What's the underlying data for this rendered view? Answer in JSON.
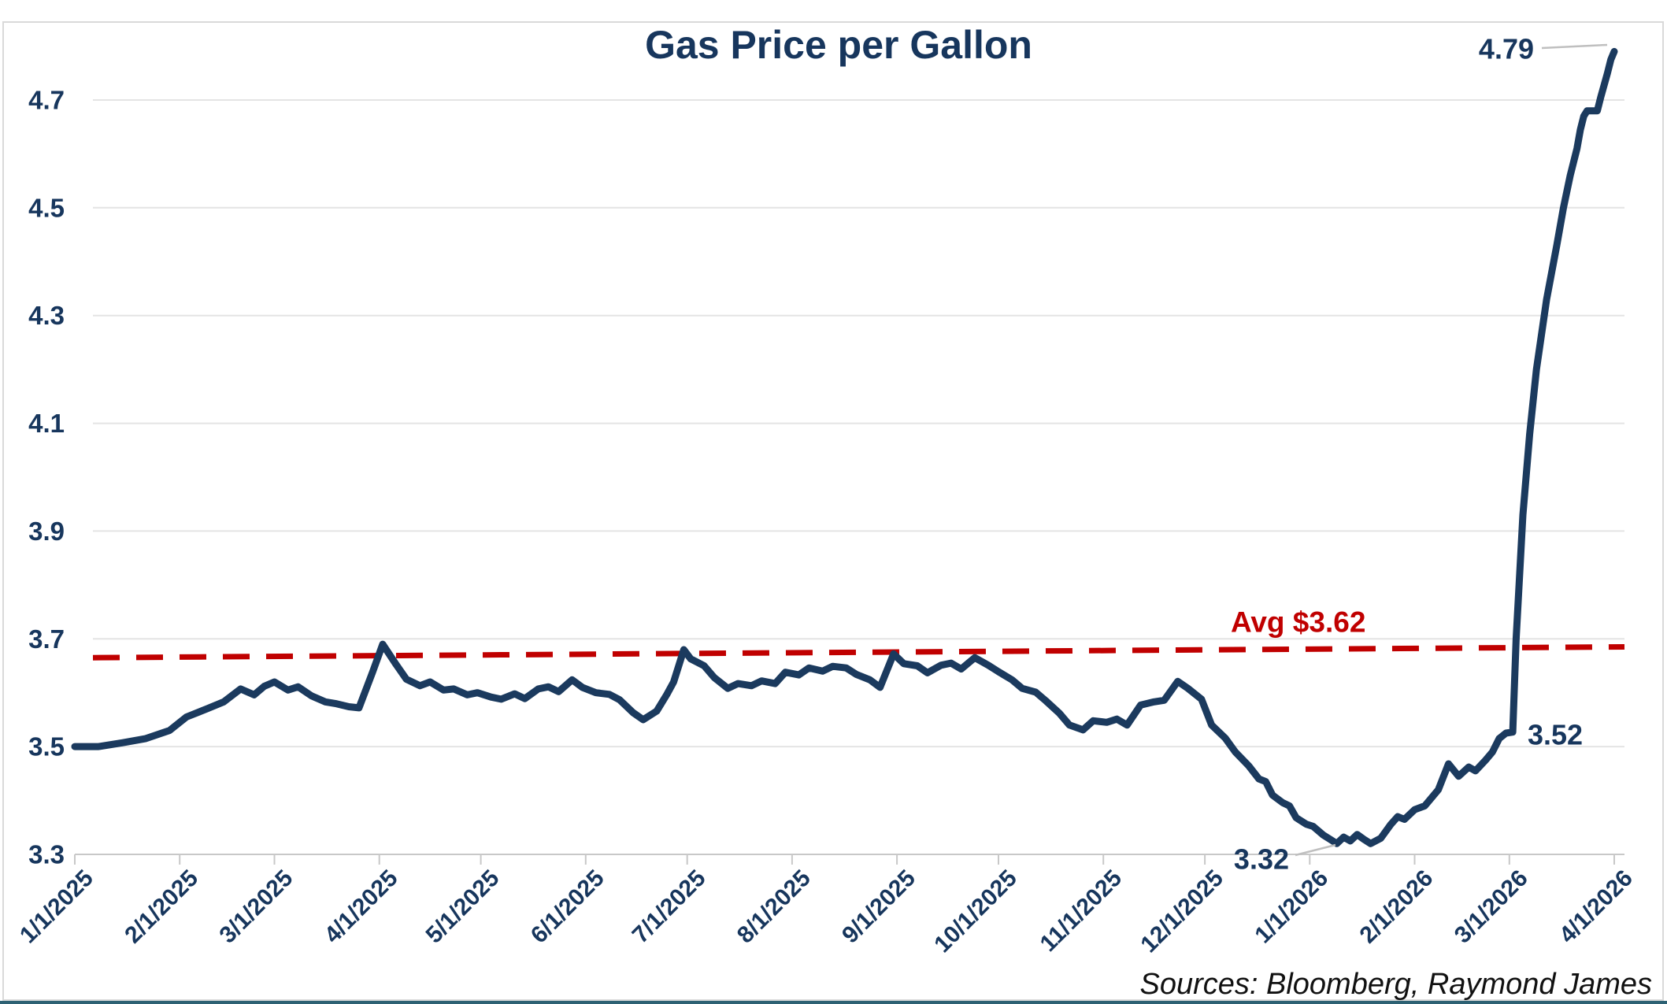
{
  "title": "Gas Price per Gallon",
  "source_note": "Sources: Bloomberg, Raymond James",
  "colors": {
    "line": "#1b3a5e",
    "text": "#17365d",
    "average_line": "#c00000",
    "gridline": "#e4e4e4",
    "axis_line": "#c8c8c8",
    "leader_line": "#bfbfbf",
    "border": "#d9d9d9",
    "bottom_edge": "#2d6173",
    "background": "#ffffff"
  },
  "chart_data": {
    "type": "line",
    "title": "Gas Price per Gallon",
    "xlabel": "",
    "ylabel": "",
    "grid": "horizontal-only",
    "legend": "none",
    "x_domain": [
      "1/1/2025",
      "4/1/2026"
    ],
    "ylim": [
      3.3,
      4.83
    ],
    "y_ticks": [
      3.3,
      3.5,
      3.7,
      3.9,
      4.1,
      4.3,
      4.5,
      4.7
    ],
    "y_tick_labels": [
      "3.3",
      "3.5",
      "3.7",
      "3.9",
      "4.1",
      "4.3",
      "4.5",
      "4.7"
    ],
    "x_tick_labels": [
      "1/1/2025",
      "2/1/2025",
      "3/1/2025",
      "4/1/2025",
      "5/1/2025",
      "6/1/2025",
      "7/1/2025",
      "8/1/2025",
      "9/1/2025",
      "10/1/2025",
      "11/1/2025",
      "12/1/2025",
      "1/1/2026",
      "2/1/2026",
      "3/1/2026",
      "4/1/2026"
    ],
    "average_line": {
      "label": "Avg $3.62",
      "average_value": 3.62,
      "line_start_value": 3.665,
      "line_end_value": 3.685,
      "style": "dashed",
      "color": "#c00000"
    },
    "annotations": [
      {
        "text": "4.79",
        "date": "4/1/2026",
        "value": 4.79,
        "role": "final-high"
      },
      {
        "text": "3.52",
        "date": "3/1/2026",
        "value": 3.52,
        "role": "pre-spike"
      },
      {
        "text": "3.32",
        "date": "1/9/2026",
        "value": 3.32,
        "role": "minimum"
      }
    ],
    "series": [
      {
        "name": "Gas price per gallon",
        "points": [
          [
            "1/1/2025",
            3.5
          ],
          [
            "1/8/2025",
            3.5
          ],
          [
            "1/15/2025",
            3.507
          ],
          [
            "1/22/2025",
            3.515
          ],
          [
            "1/29/2025",
            3.53
          ],
          [
            "2/3/2025",
            3.555
          ],
          [
            "2/9/2025",
            3.57
          ],
          [
            "2/14/2025",
            3.583
          ],
          [
            "2/19/2025",
            3.607
          ],
          [
            "2/23/2025",
            3.596
          ],
          [
            "2/26/2025",
            3.612
          ],
          [
            "3/1/2025",
            3.62
          ],
          [
            "3/5/2025",
            3.605
          ],
          [
            "3/8/2025",
            3.611
          ],
          [
            "3/12/2025",
            3.594
          ],
          [
            "3/16/2025",
            3.583
          ],
          [
            "3/19/2025",
            3.58
          ],
          [
            "3/23/2025",
            3.574
          ],
          [
            "3/26/2025",
            3.572
          ],
          [
            "3/30/2025",
            3.638
          ],
          [
            "4/2/2025",
            3.69
          ],
          [
            "4/6/2025",
            3.652
          ],
          [
            "4/9/2025",
            3.625
          ],
          [
            "4/13/2025",
            3.613
          ],
          [
            "4/16/2025",
            3.62
          ],
          [
            "4/20/2025",
            3.605
          ],
          [
            "4/23/2025",
            3.607
          ],
          [
            "4/27/2025",
            3.596
          ],
          [
            "4/30/2025",
            3.6
          ],
          [
            "5/4/2025",
            3.592
          ],
          [
            "5/7/2025",
            3.588
          ],
          [
            "5/11/2025",
            3.598
          ],
          [
            "5/14/2025",
            3.589
          ],
          [
            "5/18/2025",
            3.607
          ],
          [
            "5/21/2025",
            3.611
          ],
          [
            "5/24/2025",
            3.602
          ],
          [
            "5/28/2025",
            3.624
          ],
          [
            "5/31/2025",
            3.61
          ],
          [
            "6/4/2025",
            3.6
          ],
          [
            "6/8/2025",
            3.597
          ],
          [
            "6/11/2025",
            3.587
          ],
          [
            "6/15/2025",
            3.563
          ],
          [
            "6/18/2025",
            3.55
          ],
          [
            "6/22/2025",
            3.566
          ],
          [
            "6/25/2025",
            3.597
          ],
          [
            "6/27/2025",
            3.62
          ],
          [
            "6/30/2025",
            3.68
          ],
          [
            "7/2/2025",
            3.663
          ],
          [
            "7/6/2025",
            3.65
          ],
          [
            "7/9/2025",
            3.628
          ],
          [
            "7/13/2025",
            3.608
          ],
          [
            "7/16/2025",
            3.617
          ],
          [
            "7/20/2025",
            3.613
          ],
          [
            "7/23/2025",
            3.622
          ],
          [
            "7/27/2025",
            3.617
          ],
          [
            "7/30/2025",
            3.638
          ],
          [
            "8/3/2025",
            3.633
          ],
          [
            "8/6/2025",
            3.646
          ],
          [
            "8/10/2025",
            3.64
          ],
          [
            "8/13/2025",
            3.649
          ],
          [
            "8/17/2025",
            3.646
          ],
          [
            "8/20/2025",
            3.634
          ],
          [
            "8/24/2025",
            3.624
          ],
          [
            "8/27/2025",
            3.61
          ],
          [
            "8/31/2025",
            3.672
          ],
          [
            "9/3/2025",
            3.654
          ],
          [
            "9/7/2025",
            3.65
          ],
          [
            "9/10/2025",
            3.637
          ],
          [
            "9/14/2025",
            3.651
          ],
          [
            "9/17/2025",
            3.655
          ],
          [
            "9/20/2025",
            3.644
          ],
          [
            "9/24/2025",
            3.665
          ],
          [
            "9/28/2025",
            3.651
          ],
          [
            "10/1/2025",
            3.639
          ],
          [
            "10/5/2025",
            3.624
          ],
          [
            "10/8/2025",
            3.608
          ],
          [
            "10/12/2025",
            3.601
          ],
          [
            "10/15/2025",
            3.585
          ],
          [
            "10/19/2025",
            3.562
          ],
          [
            "10/22/2025",
            3.54
          ],
          [
            "10/26/2025",
            3.531
          ],
          [
            "10/29/2025",
            3.548
          ],
          [
            "11/2/2025",
            3.545
          ],
          [
            "11/5/2025",
            3.551
          ],
          [
            "11/8/2025",
            3.54
          ],
          [
            "11/12/2025",
            3.577
          ],
          [
            "11/16/2025",
            3.583
          ],
          [
            "11/19/2025",
            3.586
          ],
          [
            "11/23/2025",
            3.621
          ],
          [
            "11/26/2025",
            3.608
          ],
          [
            "11/30/2025",
            3.588
          ],
          [
            "12/3/2025",
            3.54
          ],
          [
            "12/7/2025",
            3.516
          ],
          [
            "12/10/2025",
            3.49
          ],
          [
            "12/14/2025",
            3.464
          ],
          [
            "12/17/2025",
            3.44
          ],
          [
            "12/19/2025",
            3.435
          ],
          [
            "12/21/2025",
            3.41
          ],
          [
            "12/24/2025",
            3.396
          ],
          [
            "12/26/2025",
            3.39
          ],
          [
            "12/28/2025",
            3.368
          ],
          [
            "12/31/2025",
            3.356
          ],
          [
            "1/2/2026",
            3.352
          ],
          [
            "1/5/2026",
            3.336
          ],
          [
            "1/7/2026",
            3.328
          ],
          [
            "1/9/2026",
            3.32
          ],
          [
            "1/11/2026",
            3.332
          ],
          [
            "1/13/2026",
            3.325
          ],
          [
            "1/15/2026",
            3.337
          ],
          [
            "1/17/2026",
            3.328
          ],
          [
            "1/19/2026",
            3.32
          ],
          [
            "1/22/2026",
            3.33
          ],
          [
            "1/25/2026",
            3.356
          ],
          [
            "1/27/2026",
            3.37
          ],
          [
            "1/29/2026",
            3.365
          ],
          [
            "2/1/2026",
            3.383
          ],
          [
            "2/4/2026",
            3.39
          ],
          [
            "2/8/2026",
            3.42
          ],
          [
            "2/11/2026",
            3.468
          ],
          [
            "2/14/2026",
            3.445
          ],
          [
            "2/17/2026",
            3.462
          ],
          [
            "2/19/2026",
            3.455
          ],
          [
            "2/22/2026",
            3.475
          ],
          [
            "2/24/2026",
            3.49
          ],
          [
            "2/26/2026",
            3.515
          ],
          [
            "2/28/2026",
            3.525
          ],
          [
            "3/2/2026",
            3.527
          ],
          [
            "3/3/2026",
            3.7
          ],
          [
            "3/5/2026",
            3.93
          ],
          [
            "3/7/2026",
            4.08
          ],
          [
            "3/9/2026",
            4.2
          ],
          [
            "3/12/2026",
            4.33
          ],
          [
            "3/15/2026",
            4.43
          ],
          [
            "3/17/2026",
            4.5
          ],
          [
            "3/19/2026",
            4.56
          ],
          [
            "3/21/2026",
            4.61
          ],
          [
            "3/22/2026",
            4.645
          ],
          [
            "3/23/2026",
            4.67
          ],
          [
            "3/24/2026",
            4.68
          ],
          [
            "3/27/2026",
            4.68
          ],
          [
            "3/28/2026",
            4.705
          ],
          [
            "3/30/2026",
            4.75
          ],
          [
            "3/31/2026",
            4.775
          ],
          [
            "4/1/2026",
            4.79
          ]
        ]
      }
    ]
  }
}
